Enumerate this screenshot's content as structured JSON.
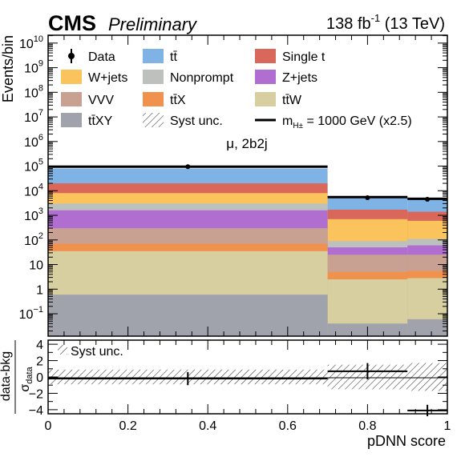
{
  "header": {
    "experiment": "CMS",
    "status": "Preliminary",
    "lumi_value": "138 fb",
    "lumi_exponent": "-1",
    "energy": "(13 TeV)"
  },
  "channel_label": "μ, 2b2j",
  "chart_data": [
    {
      "type": "bar",
      "subtype": "stacked-histogram",
      "xlabel": "pDNN score",
      "ylabel": "Events/bin",
      "xlim": [
        0,
        1
      ],
      "ylim": [
        0.01,
        20000000000
      ],
      "log_y": true,
      "bin_edges": [
        0,
        0.7,
        0.9,
        1.0
      ],
      "x_ticks": [
        0,
        0.2,
        0.4,
        0.6,
        0.8,
        1
      ],
      "x_tick_labels": [
        "0",
        "0.2",
        "0.4",
        "0.6",
        "0.8",
        "1"
      ],
      "y_ticks": [
        {
          "value": 10000000000,
          "base": "10",
          "exp": "10"
        },
        {
          "value": 1000000000,
          "base": "10",
          "exp": "9"
        },
        {
          "value": 100000000,
          "base": "10",
          "exp": "8"
        },
        {
          "value": 10000000,
          "base": "10",
          "exp": "7"
        },
        {
          "value": 1000000,
          "base": "10",
          "exp": "6"
        },
        {
          "value": 100000,
          "base": "10",
          "exp": "5"
        },
        {
          "value": 10000,
          "base": "10",
          "exp": "4"
        },
        {
          "value": 1000,
          "base": "10",
          "exp": "3"
        },
        {
          "value": 100,
          "base": "10",
          "exp": "2"
        },
        {
          "value": 10,
          "base": "10",
          "exp": ""
        },
        {
          "value": 1,
          "base": "1",
          "exp": ""
        },
        {
          "value": 0.1,
          "base": "10",
          "exp": "−1"
        }
      ],
      "stack_cumulative_tops": [
        {
          "name": "tt̄XY",
          "color": "#a0a3ab",
          "values": [
            0.6,
            0.04,
            0.06
          ]
        },
        {
          "name": "tt̄W",
          "color": "#d8cfa1",
          "values": [
            35,
            2.5,
            2.8
          ]
        },
        {
          "name": "tt̄X",
          "color": "#f0914d",
          "values": [
            70,
            5,
            5.5
          ]
        },
        {
          "name": "VVV",
          "color": "#c8a192",
          "values": [
            300,
            25,
            25
          ]
        },
        {
          "name": "Z+jets",
          "color": "#b06fd0",
          "values": [
            1600,
            50,
            60
          ]
        },
        {
          "name": "Nonprompt",
          "color": "#bcc1bd",
          "values": [
            3000,
            90,
            110
          ]
        },
        {
          "name": "W+jets",
          "color": "#fbc35c",
          "values": [
            8000,
            700,
            600
          ]
        },
        {
          "name": "Single t",
          "color": "#d9675a",
          "values": [
            20000,
            1700,
            1400
          ]
        },
        {
          "name": "tt̄",
          "color": "#7fb2e5",
          "values": [
            80000,
            5000,
            4400
          ]
        }
      ],
      "signal": {
        "name": "m",
        "values": [
          95000,
          5500,
          4700
        ],
        "color": "#000000"
      },
      "data_points": [
        {
          "x": 0.35,
          "y": 95000
        },
        {
          "x": 0.8,
          "y": 5200
        },
        {
          "x": 0.95,
          "y": 4500
        }
      ],
      "legend": {
        "placement": "top",
        "entries": [
          {
            "label": "Data",
            "style": "data"
          },
          {
            "label": "tt̄",
            "style": "fill",
            "color": "#7fb2e5"
          },
          {
            "label": "Single t",
            "style": "fill",
            "color": "#d9675a"
          },
          {
            "label": "W+jets",
            "style": "fill",
            "color": "#fbc35c"
          },
          {
            "label": "Nonprompt",
            "style": "fill",
            "color": "#bcc1bd"
          },
          {
            "label": "Z+jets",
            "style": "fill",
            "color": "#b06fd0"
          },
          {
            "label": "VVV",
            "style": "fill",
            "color": "#c8a192"
          },
          {
            "label": "tt̄X",
            "style": "fill",
            "color": "#f0914d"
          },
          {
            "label": "tt̄W",
            "style": "fill",
            "color": "#d8cfa1"
          },
          {
            "label": "tt̄XY",
            "style": "fill",
            "color": "#a0a3ab"
          },
          {
            "label": "Syst unc.",
            "style": "hatch"
          },
          {
            "label_main": "m",
            "label_sub": "H±",
            "label_rest": " = 1000 GeV (x2.5)",
            "style": "line"
          }
        ]
      }
    },
    {
      "type": "scatter",
      "subtype": "pull-ratio",
      "xlabel": "pDNN score",
      "ylabel_numerator": "data-bkg",
      "ylabel_denominator": "σ",
      "ylabel_denominator_sub": "data",
      "ylim": [
        -4.5,
        4.5
      ],
      "y_ticks": [
        4,
        2,
        0,
        -2,
        -4
      ],
      "y_tick_labels": [
        "4",
        "2",
        "0",
        "−2",
        "−4"
      ],
      "legend_entry": "Syst unc.",
      "points": [
        {
          "x": 0.35,
          "xerr": [
            0,
            0.7
          ],
          "y": -0.2,
          "yerr": 0.8
        },
        {
          "x": 0.8,
          "xerr": [
            0.7,
            0.9
          ],
          "y": 0.7,
          "yerr": 1.0
        },
        {
          "x": 0.95,
          "xerr": [
            0.9,
            1.0
          ],
          "y": -4.1,
          "yerr": 0.7
        }
      ],
      "syst_band": [
        {
          "x0": 0,
          "x1": 0.7,
          "lo": -0.9,
          "hi": 0.9
        },
        {
          "x0": 0.7,
          "x1": 0.9,
          "lo": -1.5,
          "hi": 1.5
        },
        {
          "x0": 0.9,
          "x1": 1.0,
          "lo": -1.7,
          "hi": 1.7
        }
      ]
    }
  ]
}
